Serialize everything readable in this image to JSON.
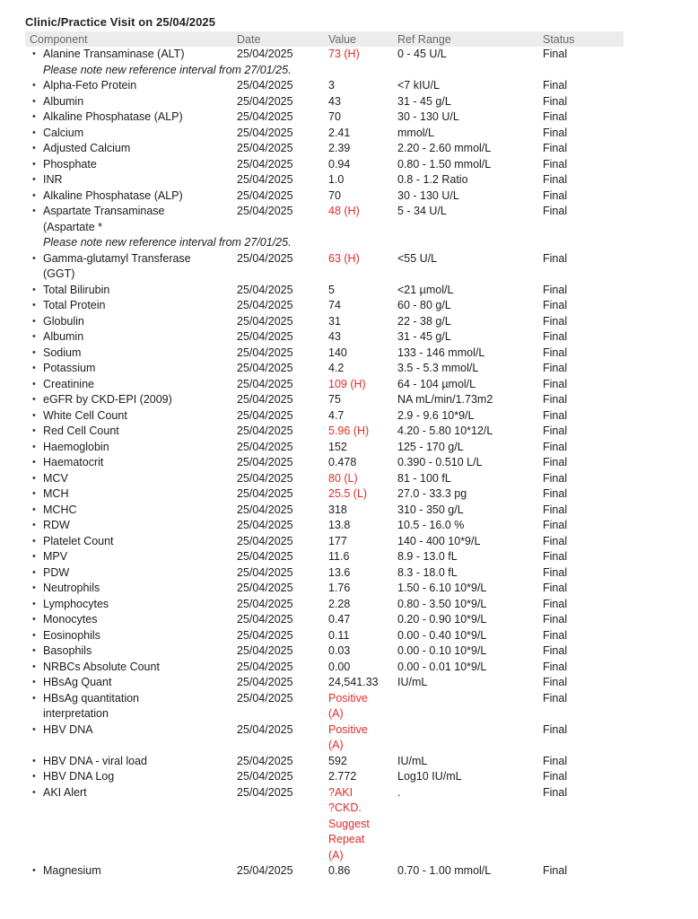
{
  "colors": {
    "abnormal_value": "#e02b2b",
    "header_bg": "#ececec",
    "header_text": "#6a6a6a",
    "body_text": "#1c1c1c"
  },
  "page": {
    "title": "Clinic/Practice Visit on 25/04/2025"
  },
  "table": {
    "columns": [
      "Component",
      "Date",
      "Value",
      "Ref Range",
      "Status"
    ],
    "rows": [
      {
        "component": "Alanine Transaminase (ALT)",
        "date": "25/04/2025",
        "value": "73 (H)",
        "flag": true,
        "ref": "0 - 45 U/L",
        "status": "Final",
        "note": "Please note new reference interval from 27/01/25."
      },
      {
        "component": "Alpha-Feto Protein",
        "date": "25/04/2025",
        "value": "3",
        "flag": false,
        "ref": "<7 kIU/L",
        "status": "Final"
      },
      {
        "component": "Albumin",
        "date": "25/04/2025",
        "value": "43",
        "flag": false,
        "ref": "31 - 45 g/L",
        "status": "Final"
      },
      {
        "component": "Alkaline Phosphatase (ALP)",
        "date": "25/04/2025",
        "value": "70",
        "flag": false,
        "ref": "30 - 130 U/L",
        "status": "Final"
      },
      {
        "component": "Calcium",
        "date": "25/04/2025",
        "value": "2.41",
        "flag": false,
        "ref": "mmol/L",
        "status": "Final"
      },
      {
        "component": "Adjusted Calcium",
        "date": "25/04/2025",
        "value": "2.39",
        "flag": false,
        "ref": "2.20 - 2.60 mmol/L",
        "status": "Final"
      },
      {
        "component": "Phosphate",
        "date": "25/04/2025",
        "value": "0.94",
        "flag": false,
        "ref": "0.80 - 1.50 mmol/L",
        "status": "Final"
      },
      {
        "component": "INR",
        "date": "25/04/2025",
        "value": "1.0",
        "flag": false,
        "ref": "0.8 - 1.2 Ratio",
        "status": "Final"
      },
      {
        "component": "Alkaline Phosphatase (ALP)",
        "date": "25/04/2025",
        "value": "70",
        "flag": false,
        "ref": "30 - 130 U/L",
        "status": "Final"
      },
      {
        "component": "Aspartate Transaminase\n(Aspartate *",
        "date": "25/04/2025",
        "value": "48 (H)",
        "flag": true,
        "ref": "5 - 34 U/L",
        "status": "Final",
        "note": "Please note new reference interval from 27/01/25."
      },
      {
        "component": "Gamma-glutamyl Transferase\n(GGT)",
        "date": "25/04/2025",
        "value": "63 (H)",
        "flag": true,
        "ref": "<55 U/L",
        "status": "Final"
      },
      {
        "component": "Total Bilirubin",
        "date": "25/04/2025",
        "value": "5",
        "flag": false,
        "ref": "<21 µmol/L",
        "status": "Final"
      },
      {
        "component": "Total Protein",
        "date": "25/04/2025",
        "value": "74",
        "flag": false,
        "ref": "60 - 80 g/L",
        "status": "Final"
      },
      {
        "component": "Globulin",
        "date": "25/04/2025",
        "value": "31",
        "flag": false,
        "ref": "22 - 38 g/L",
        "status": "Final"
      },
      {
        "component": "Albumin",
        "date": "25/04/2025",
        "value": "43",
        "flag": false,
        "ref": "31 - 45 g/L",
        "status": "Final"
      },
      {
        "component": "Sodium",
        "date": "25/04/2025",
        "value": "140",
        "flag": false,
        "ref": "133 - 146 mmol/L",
        "status": "Final"
      },
      {
        "component": "Potassium",
        "date": "25/04/2025",
        "value": "4.2",
        "flag": false,
        "ref": "3.5 - 5.3 mmol/L",
        "status": "Final"
      },
      {
        "component": "Creatinine",
        "date": "25/04/2025",
        "value": "109 (H)",
        "flag": true,
        "ref": "64 - 104 µmol/L",
        "status": "Final"
      },
      {
        "component": "eGFR by CKD-EPI (2009)",
        "date": "25/04/2025",
        "value": "75",
        "flag": false,
        "ref": "NA mL/min/1.73m2",
        "status": "Final"
      },
      {
        "component": "White Cell Count",
        "date": "25/04/2025",
        "value": "4.7",
        "flag": false,
        "ref": "2.9 - 9.6 10*9/L",
        "status": "Final"
      },
      {
        "component": "Red Cell Count",
        "date": "25/04/2025",
        "value": "5.96 (H)",
        "flag": true,
        "ref": "4.20 - 5.80 10*12/L",
        "status": "Final"
      },
      {
        "component": "Haemoglobin",
        "date": "25/04/2025",
        "value": "152",
        "flag": false,
        "ref": "125 - 170 g/L",
        "status": "Final"
      },
      {
        "component": "Haematocrit",
        "date": "25/04/2025",
        "value": "0.478",
        "flag": false,
        "ref": "0.390 - 0.510 L/L",
        "status": "Final"
      },
      {
        "component": "MCV",
        "date": "25/04/2025",
        "value": "80 (L)",
        "flag": true,
        "ref": "81 - 100 fL",
        "status": "Final"
      },
      {
        "component": "MCH",
        "date": "25/04/2025",
        "value": "25.5 (L)",
        "flag": true,
        "ref": "27.0 - 33.3 pg",
        "status": "Final"
      },
      {
        "component": "MCHC",
        "date": "25/04/2025",
        "value": "318",
        "flag": false,
        "ref": "310 - 350 g/L",
        "status": "Final"
      },
      {
        "component": "RDW",
        "date": "25/04/2025",
        "value": "13.8",
        "flag": false,
        "ref": "10.5 - 16.0 %",
        "status": "Final"
      },
      {
        "component": "Platelet Count",
        "date": "25/04/2025",
        "value": "177",
        "flag": false,
        "ref": "140 - 400 10*9/L",
        "status": "Final"
      },
      {
        "component": "MPV",
        "date": "25/04/2025",
        "value": "11.6",
        "flag": false,
        "ref": "8.9 - 13.0 fL",
        "status": "Final"
      },
      {
        "component": "PDW",
        "date": "25/04/2025",
        "value": "13.6",
        "flag": false,
        "ref": "8.3 - 18.0 fL",
        "status": "Final"
      },
      {
        "component": "Neutrophils",
        "date": "25/04/2025",
        "value": "1.76",
        "flag": false,
        "ref": "1.50 - 6.10 10*9/L",
        "status": "Final"
      },
      {
        "component": "Lymphocytes",
        "date": "25/04/2025",
        "value": "2.28",
        "flag": false,
        "ref": "0.80 - 3.50 10*9/L",
        "status": "Final"
      },
      {
        "component": "Monocytes",
        "date": "25/04/2025",
        "value": "0.47",
        "flag": false,
        "ref": "0.20 - 0.90 10*9/L",
        "status": "Final"
      },
      {
        "component": "Eosinophils",
        "date": "25/04/2025",
        "value": "0.11",
        "flag": false,
        "ref": "0.00 - 0.40 10*9/L",
        "status": "Final"
      },
      {
        "component": "Basophils",
        "date": "25/04/2025",
        "value": "0.03",
        "flag": false,
        "ref": "0.00 - 0.10 10*9/L",
        "status": "Final"
      },
      {
        "component": "NRBCs Absolute Count",
        "date": "25/04/2025",
        "value": "0.00",
        "flag": false,
        "ref": "0.00 - 0.01 10*9/L",
        "status": "Final"
      },
      {
        "component": "HBsAg Quant",
        "date": "25/04/2025",
        "value": "24,541.33",
        "flag": false,
        "ref": "IU/mL",
        "status": "Final"
      },
      {
        "component": "HBsAg quantitation\ninterpretation",
        "date": "25/04/2025",
        "value": "Positive\n(A)",
        "flag": true,
        "ref": "",
        "status": "Final"
      },
      {
        "component": "HBV DNA",
        "date": "25/04/2025",
        "value": "Positive\n(A)",
        "flag": true,
        "ref": "",
        "status": "Final"
      },
      {
        "component": "HBV DNA - viral load",
        "date": "25/04/2025",
        "value": "592",
        "flag": false,
        "ref": "IU/mL",
        "status": "Final"
      },
      {
        "component": "HBV DNA Log",
        "date": "25/04/2025",
        "value": "2.772",
        "flag": false,
        "ref": "Log10 IU/mL",
        "status": "Final"
      },
      {
        "component": "AKI Alert",
        "date": "25/04/2025",
        "value": "?AKI\n?CKD.\nSuggest\nRepeat\n(A)",
        "flag": true,
        "ref": ".",
        "status": "Final"
      },
      {
        "component": "Magnesium",
        "date": "25/04/2025",
        "value": "0.86",
        "flag": false,
        "ref": "0.70 - 1.00 mmol/L",
        "status": "Final"
      }
    ]
  }
}
